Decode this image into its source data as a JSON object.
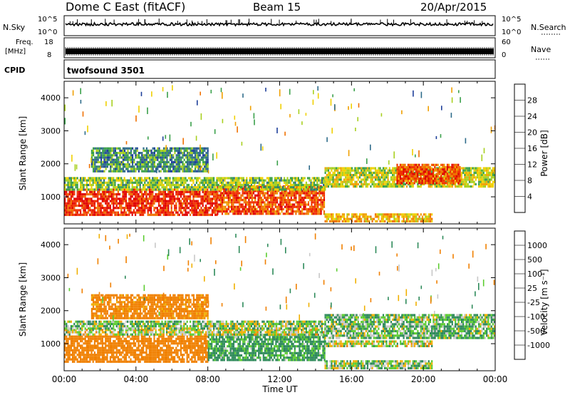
{
  "header": {
    "station": "Dome C East (fitACF)",
    "beam": "Beam 15",
    "date": "20/Apr/2015"
  },
  "strip_panels": {
    "nsky": {
      "left_label": "N.Sky",
      "right_label": "N.Search",
      "left_tick_top": "10^5",
      "left_tick_bottom": "10^0",
      "right_tick_top": "10^5",
      "right_tick_bottom": "10^0"
    },
    "freq": {
      "left_label_1": "Freq.",
      "left_label_2": "[MHz]",
      "right_label": "Nave",
      "left_tick_top": "18",
      "left_tick_bottom": "8",
      "right_tick_top": "60",
      "right_tick_bottom": "0"
    },
    "cpid": {
      "left_label": "CPID",
      "value": "twofsound 3501"
    }
  },
  "chart_data": [
    {
      "type": "heatmap",
      "title": "",
      "ylabel": "Slant Range [km]",
      "xlabel": "",
      "x_tick_labels": [
        "00:00",
        "04:00",
        "08:00",
        "12:00",
        "16:00",
        "20:00",
        "00:00"
      ],
      "xlim": [
        0,
        24
      ],
      "y_ticks": [
        1000,
        2000,
        3000,
        4000
      ],
      "ylim": [
        180,
        4500
      ],
      "colorbar": {
        "label": "Power [dB]",
        "ticks": [
          "4",
          "8",
          "12",
          "16",
          "20",
          "24",
          "28"
        ],
        "colors": [
          "#0000ee",
          "#1e3f9a",
          "#2e6b8a",
          "#3aa04a",
          "#a8d020",
          "#f0d000",
          "#f0a000",
          "#f07000",
          "#f03000",
          "#e00000"
        ]
      },
      "echo_regions": [
        {
          "t_start": 0,
          "t_end": 8.5,
          "r_low": 450,
          "r_high": 1250,
          "value_db": 28
        },
        {
          "t_start": 8.5,
          "t_end": 14.5,
          "r_low": 500,
          "r_high": 1350,
          "value_db": 26
        },
        {
          "t_start": 0,
          "t_end": 14.5,
          "r_low": 1250,
          "r_high": 1600,
          "value_db": 14
        },
        {
          "t_start": 14.5,
          "t_end": 24,
          "r_low": 1300,
          "r_high": 1900,
          "value_db": 16
        },
        {
          "t_start": 18.5,
          "t_end": 22,
          "r_low": 1400,
          "r_high": 2000,
          "value_db": 26
        },
        {
          "t_start": 14.5,
          "t_end": 20.5,
          "r_low": 250,
          "r_high": 500,
          "value_db": 20
        },
        {
          "t_start": 1.5,
          "t_end": 8,
          "r_low": 1800,
          "r_high": 2500,
          "value_db": 10
        }
      ]
    },
    {
      "type": "heatmap",
      "title": "",
      "ylabel": "Slant Range [km]",
      "xlabel": "Time UT",
      "x_tick_labels": [
        "00:00",
        "04:00",
        "08:00",
        "12:00",
        "16:00",
        "20:00",
        "00:00"
      ],
      "xlim": [
        0,
        24
      ],
      "y_ticks": [
        1000,
        2000,
        3000,
        4000
      ],
      "ylim": [
        180,
        4500
      ],
      "colorbar": {
        "label": "Velocity [m s⁻¹]",
        "ticks": [
          "1000",
          "500",
          "100",
          "25",
          "-25",
          "-100",
          "-500",
          "-1000"
        ],
        "colors": [
          "#2040c0",
          "#2e6fa0",
          "#2e8a5a",
          "#5ccc30",
          "#c8c8c8",
          "#f0b000",
          "#f08000",
          "#f04000",
          "#e00000"
        ]
      },
      "echo_regions": [
        {
          "t_start": 0,
          "t_end": 8,
          "r_low": 450,
          "r_high": 1250,
          "value_ms": -300
        },
        {
          "t_start": 8,
          "t_end": 14.5,
          "r_low": 500,
          "r_high": 1300,
          "value_ms": 150
        },
        {
          "t_start": 0,
          "t_end": 14.5,
          "r_low": 1250,
          "r_high": 1450,
          "value_ms": 0
        },
        {
          "t_start": 0,
          "t_end": 14.5,
          "r_low": 1450,
          "r_high": 1700,
          "value_ms": 60
        },
        {
          "t_start": 14.5,
          "t_end": 24,
          "r_low": 1200,
          "r_high": 1900,
          "value_ms": 80
        },
        {
          "t_start": 14.5,
          "t_end": 20.5,
          "r_low": 950,
          "r_high": 1100,
          "value_ms": 0
        },
        {
          "t_start": 14.5,
          "t_end": 20.5,
          "r_low": 250,
          "r_high": 500,
          "value_ms": 60
        },
        {
          "t_start": 1.5,
          "t_end": 8,
          "r_low": 1800,
          "r_high": 2500,
          "value_ms": -200
        }
      ]
    }
  ]
}
